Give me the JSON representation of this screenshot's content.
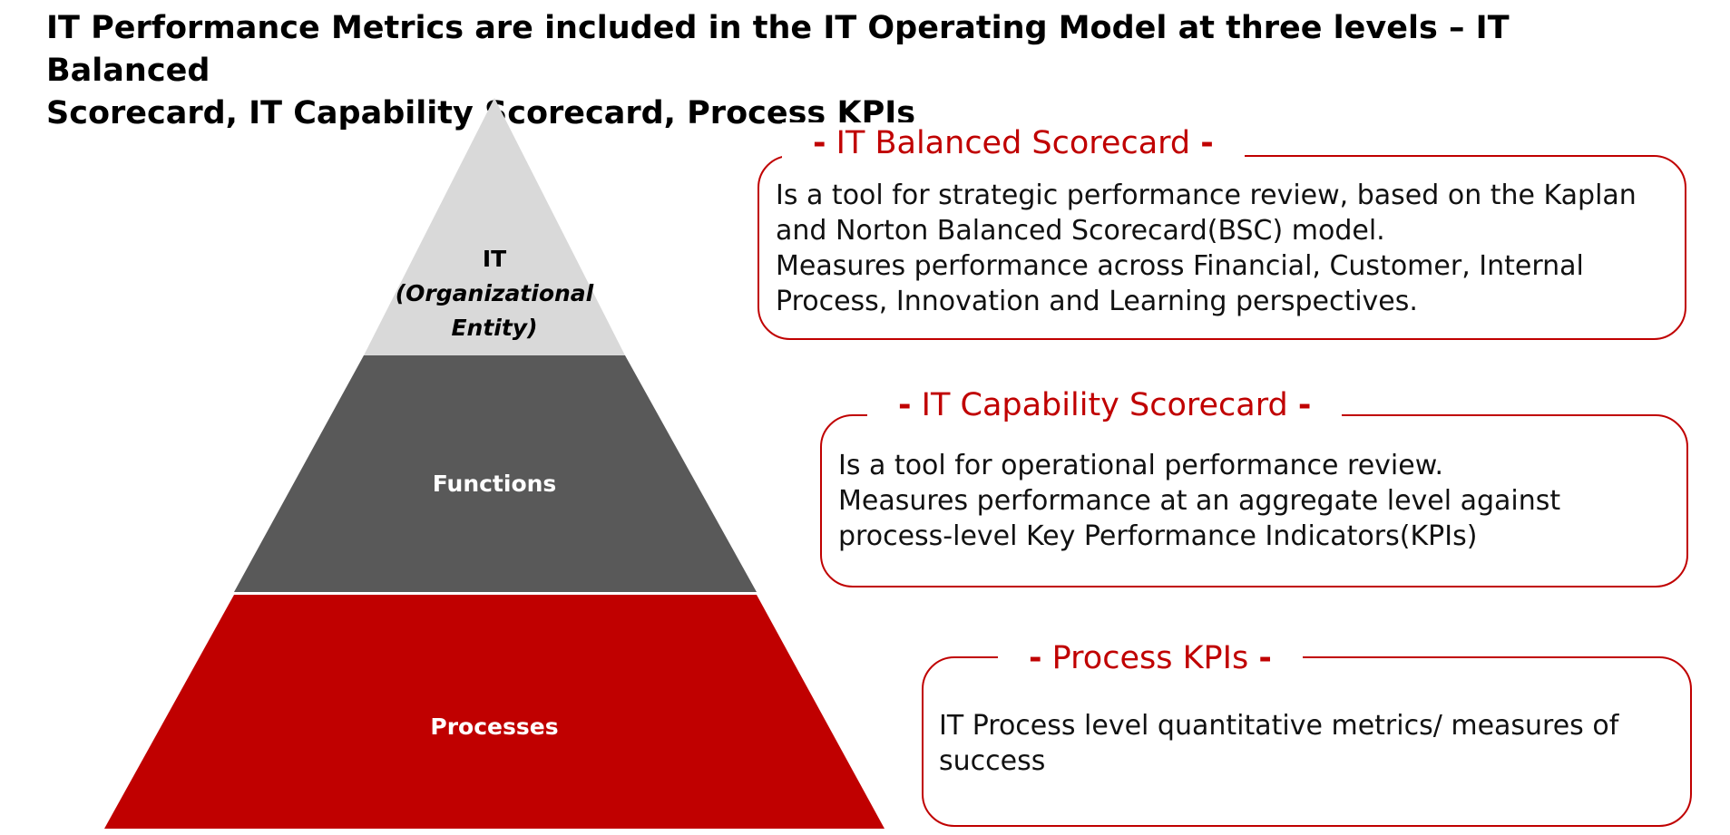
{
  "title": {
    "line1": "IT Performance Metrics are included in the IT Operating Model at three levels – IT Balanced",
    "line2": "Scorecard, IT Capability Scorecard, Process KPIs"
  },
  "pyramid": {
    "tiers": [
      {
        "name": "it-tier",
        "lines": [
          "IT",
          "(Organizational",
          "Entity)"
        ],
        "color": "#d9d9d9"
      },
      {
        "name": "functions-tier",
        "lines": [
          "Functions"
        ],
        "color": "#595959"
      },
      {
        "name": "processes-tier",
        "lines": [
          "Processes"
        ],
        "color": "#c00000"
      }
    ]
  },
  "cards": [
    {
      "dash_left": "-",
      "title": "IT Balanced Scorecard",
      "dash_right": "-",
      "lines": [
        "Is a tool for strategic performance review, based on the Kaplan",
        "and Norton Balanced Scorecard(BSC) model.",
        "Measures performance across Financial, Customer, Internal",
        "Process, Innovation and Learning perspectives."
      ]
    },
    {
      "dash_left": "-",
      "title": "IT Capability Scorecard",
      "dash_right": "-",
      "lines": [
        "Is a tool for operational performance review.",
        "Measures performance at an aggregate level against",
        "process-level Key Performance Indicators(KPIs)"
      ]
    },
    {
      "dash_left": "-",
      "title": "Process KPIs",
      "dash_right": "-",
      "lines": [
        "IT Process level quantitative metrics/ measures of",
        "success"
      ]
    }
  ],
  "colors": {
    "accent": "#c00000",
    "light_gray": "#d9d9d9",
    "dark_gray": "#595959"
  }
}
